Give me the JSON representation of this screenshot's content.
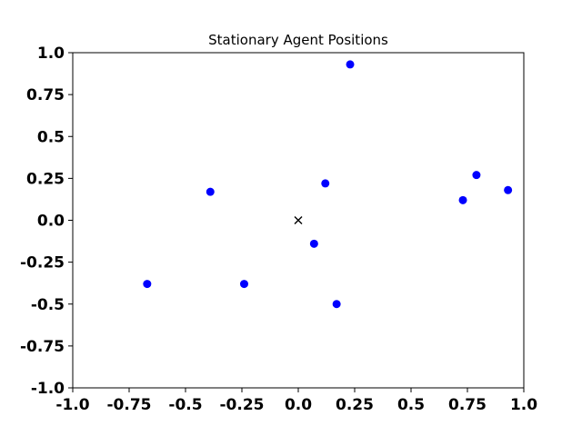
{
  "chart_data": {
    "type": "scatter",
    "title": "Stationary Agent Positions",
    "xlabel": "",
    "ylabel": "",
    "xlim": [
      -1.0,
      1.0
    ],
    "ylim": [
      -1.0,
      1.0
    ],
    "grid": false,
    "x_ticks": [
      -1.0,
      -0.75,
      -0.5,
      -0.25,
      0.0,
      0.25,
      0.5,
      0.75,
      1.0
    ],
    "x_tick_labels": [
      "-1.0",
      "-0.75",
      "-0.5",
      "-0.25",
      "0.0",
      "0.25",
      "0.5",
      "0.75",
      "1.0"
    ],
    "y_ticks": [
      1.0,
      0.75,
      0.5,
      0.25,
      0.0,
      -0.25,
      -0.5,
      -0.75,
      -1.0
    ],
    "y_tick_labels": [
      "1.0",
      "0.75",
      "0.5",
      "0.25",
      "0.0",
      "-0.25",
      "-0.5",
      "-0.75",
      "-1.0"
    ],
    "series": [
      {
        "marker": "circle",
        "color": "#0000ff",
        "points": [
          [
            0.23,
            0.93
          ],
          [
            0.12,
            0.22
          ],
          [
            -0.39,
            0.17
          ],
          [
            0.07,
            -0.14
          ],
          [
            -0.24,
            -0.38
          ],
          [
            -0.67,
            -0.38
          ],
          [
            0.17,
            -0.5
          ],
          [
            0.73,
            0.12
          ],
          [
            0.79,
            0.27
          ],
          [
            0.93,
            0.18
          ]
        ]
      },
      {
        "marker": "x",
        "color": "#000000",
        "points": [
          [
            0.0,
            0.0
          ]
        ]
      }
    ]
  }
}
